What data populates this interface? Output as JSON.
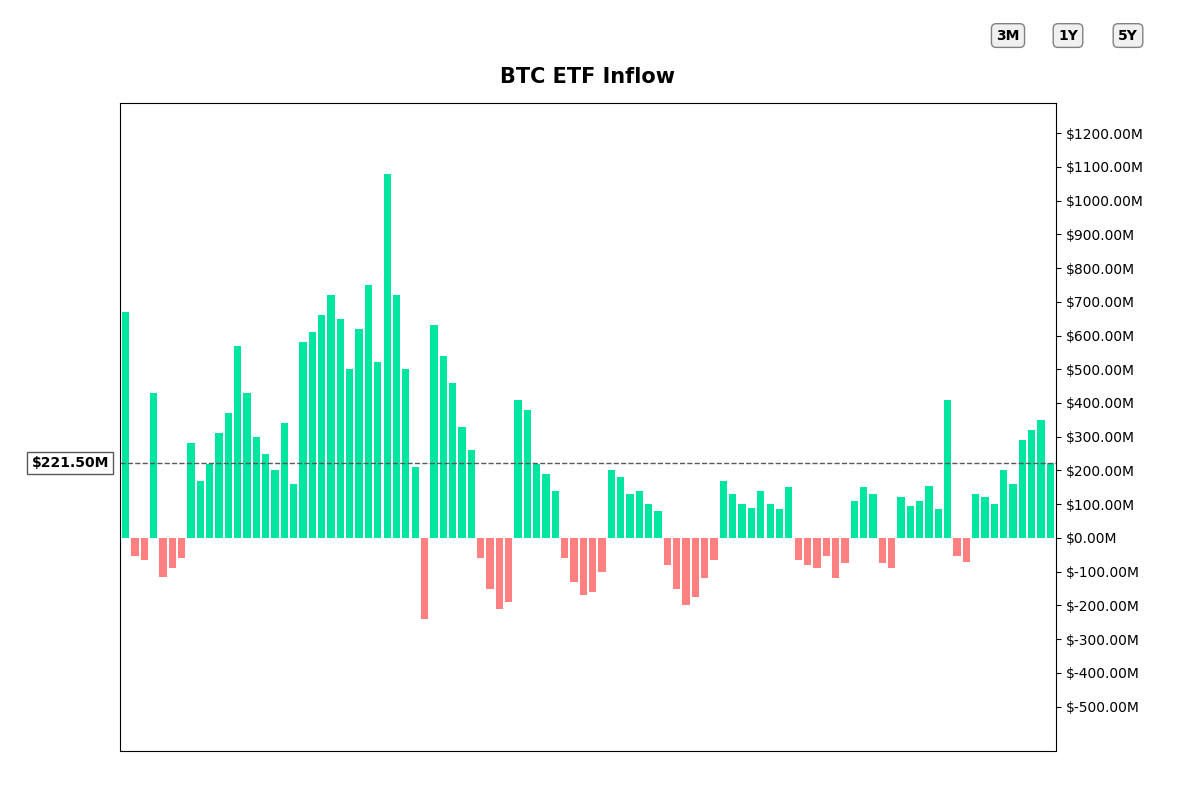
{
  "chart_data": {
    "type": "bar",
    "title": "BTC ETF Inflow",
    "buttons": [
      "3M",
      "1Y",
      "5Y"
    ],
    "categories": [
      null,
      null,
      null,
      null,
      null,
      null,
      null,
      null,
      null,
      null,
      null,
      null,
      null,
      null,
      null,
      null,
      null,
      null,
      null,
      null,
      null,
      null,
      null,
      null,
      null,
      null,
      null,
      null,
      null,
      null,
      null,
      null,
      null,
      null,
      null,
      null,
      null,
      null,
      null,
      null,
      null,
      null,
      null,
      null,
      null,
      null,
      null,
      null,
      null,
      null,
      null,
      null,
      null,
      null,
      null,
      null,
      null,
      null,
      null,
      null,
      null,
      null,
      null,
      null,
      null,
      null,
      null,
      null,
      null,
      null,
      null,
      null,
      null,
      null,
      null,
      null,
      null,
      null,
      null,
      null,
      null,
      null,
      null,
      null,
      null,
      null,
      null,
      null,
      null,
      null,
      null,
      null,
      null,
      null,
      null,
      null,
      null,
      null,
      null,
      null
    ],
    "values": [
      670,
      -55,
      -65,
      430,
      -115,
      -90,
      -60,
      280,
      170,
      220,
      310,
      370,
      570,
      430,
      300,
      250,
      200,
      340,
      160,
      580,
      610,
      660,
      720,
      650,
      500,
      620,
      750,
      520,
      1080,
      720,
      500,
      210,
      -240,
      630,
      540,
      460,
      330,
      260,
      -60,
      -150,
      -210,
      -190,
      410,
      380,
      220,
      190,
      140,
      -60,
      -130,
      -170,
      -160,
      -100,
      200,
      180,
      130,
      140,
      100,
      80,
      -80,
      -150,
      -200,
      -175,
      -120,
      -65,
      170,
      130,
      100,
      90,
      140,
      100,
      85,
      150,
      -65,
      -80,
      -90,
      -55,
      -120,
      -75,
      110,
      150,
      130,
      -75,
      -90,
      120,
      95,
      110,
      155,
      85,
      410,
      -55,
      -70,
      130,
      120,
      100,
      200,
      160,
      290,
      320,
      350,
      221
    ],
    "colors": [
      "#00e5a0",
      "#ff8080",
      "#ff8080",
      "#00e5a0",
      "#ff8080",
      "#ff8080",
      "#ff8080",
      "#00e5a0",
      "#00e5a0",
      "#00e5a0",
      "#00e5a0",
      "#00e5a0",
      "#00e5a0",
      "#00e5a0",
      "#00e5a0",
      "#00e5a0",
      "#00e5a0",
      "#00e5a0",
      "#00e5a0",
      "#00e5a0",
      "#00e5a0",
      "#00e5a0",
      "#00e5a0",
      "#00e5a0",
      "#00e5a0",
      "#00e5a0",
      "#00e5a0",
      "#00e5a0",
      "#00e5a0",
      "#00e5a0",
      "#00e5a0",
      "#00e5a0",
      "#ff8080",
      "#00e5a0",
      "#00e5a0",
      "#00e5a0",
      "#00e5a0",
      "#00e5a0",
      "#ff8080",
      "#ff8080",
      "#ff8080",
      "#ff8080",
      "#00e5a0",
      "#00e5a0",
      "#00e5a0",
      "#00e5a0",
      "#00e5a0",
      "#ff8080",
      "#ff8080",
      "#ff8080",
      "#ff8080",
      "#ff8080",
      "#00e5a0",
      "#00e5a0",
      "#00e5a0",
      "#00e5a0",
      "#00e5a0",
      "#00e5a0",
      "#ff8080",
      "#ff8080",
      "#ff8080",
      "#ff8080",
      "#ff8080",
      "#ff8080",
      "#00e5a0",
      "#00e5a0",
      "#00e5a0",
      "#00e5a0",
      "#00e5a0",
      "#00e5a0",
      "#00e5a0",
      "#00e5a0",
      "#ff8080",
      "#ff8080",
      "#ff8080",
      "#ff8080",
      "#ff8080",
      "#ff8080",
      "#00e5a0",
      "#00e5a0",
      "#00e5a0",
      "#ff8080",
      "#ff8080",
      "#00e5a0",
      "#00e5a0",
      "#00e5a0",
      "#00e5a0",
      "#00e5a0",
      "#00e5a0",
      "#ff8080",
      "#ff8080",
      "#00e5a0",
      "#00e5a0",
      "#00e5a0",
      "#00e5a0",
      "#00e5a0",
      "#00e5a0",
      "#00e5a0",
      "#00e5a0",
      "#00e5a0"
    ],
    "ylim": [
      -630,
      1290
    ],
    "yticks": [
      {
        "value": 1200,
        "label": "$1200.00M"
      },
      {
        "value": 1100,
        "label": "$1100.00M"
      },
      {
        "value": 1000,
        "label": "$1000.00M"
      },
      {
        "value": 900,
        "label": "$900.00M"
      },
      {
        "value": 800,
        "label": "$800.00M"
      },
      {
        "value": 700,
        "label": "$700.00M"
      },
      {
        "value": 600,
        "label": "$600.00M"
      },
      {
        "value": 500,
        "label": "$500.00M"
      },
      {
        "value": 400,
        "label": "$400.00M"
      },
      {
        "value": 300,
        "label": "$300.00M"
      },
      {
        "value": 200,
        "label": "$200.00M"
      },
      {
        "value": 100,
        "label": "$100.00M"
      },
      {
        "value": 0,
        "label": "$0.00M"
      },
      {
        "value": -100,
        "label": "$-100.00M"
      },
      {
        "value": -200,
        "label": "$-200.00M"
      },
      {
        "value": -300,
        "label": "$-300.00M"
      },
      {
        "value": -400,
        "label": "$-400.00M"
      },
      {
        "value": -500,
        "label": "$-500.00M"
      }
    ],
    "reference_line": {
      "y": 221.5,
      "line_style": "dashed"
    },
    "annotations": [
      {
        "text": "$221.50M",
        "y": 221.5
      }
    ],
    "tick_labels": "y"
  }
}
